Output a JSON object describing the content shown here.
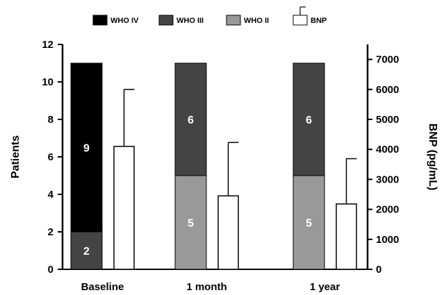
{
  "chart_data": {
    "type": "bar",
    "categories": [
      "Baseline",
      "1 month",
      "1 year"
    ],
    "ylabel": "Patients",
    "y2label": "BNP (pg/mL)",
    "ylim": [
      0,
      12
    ],
    "y2lim": [
      0,
      7500
    ],
    "y_ticks": [
      0,
      2,
      4,
      6,
      8,
      10,
      12
    ],
    "y2_ticks": [
      0,
      1000,
      2000,
      3000,
      4000,
      5000,
      6000,
      7000
    ],
    "legend_position": "top",
    "stacked_series": [
      {
        "name": "WHO IV",
        "color": "#000000",
        "values": [
          9,
          0,
          0
        ]
      },
      {
        "name": "WHO III",
        "color": "#444444",
        "values": [
          2,
          6,
          6
        ]
      },
      {
        "name": "WHO II",
        "color": "#999999",
        "values": [
          0,
          5,
          5
        ]
      }
    ],
    "stack_order": [
      "WHO III",
      "WHO IV"
    ],
    "stack_order_by_category": [
      [
        "WHO III",
        "WHO IV"
      ],
      [
        "WHO II",
        "WHO III"
      ],
      [
        "WHO II",
        "WHO III"
      ]
    ],
    "bnp_series": {
      "name": "BNP",
      "color": "#ffffff",
      "values": [
        4100,
        2450,
        2180
      ],
      "error_upper": [
        6000,
        4230,
        3690
      ]
    }
  }
}
